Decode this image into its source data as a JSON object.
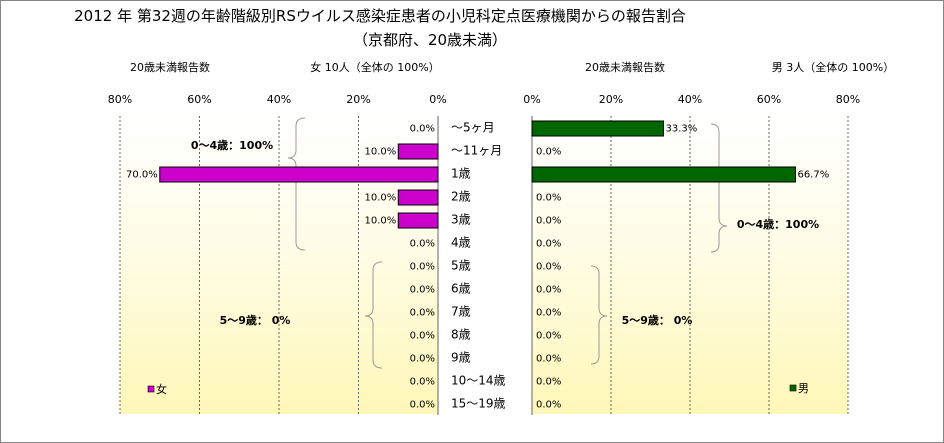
{
  "title_line1": "2012 年 第32週の年齢階級別RSウイルス感染症患者の小児科定点医療機関からの報告割合",
  "title_line2": "（京都府、20歳未満）",
  "left_header": {
    "label": "20歳未満報告数",
    "summary": "女  10人（全体の  100%）"
  },
  "right_header": {
    "label": "20歳未満報告数",
    "summary": "男  3人（全体の  100%）"
  },
  "chart_data": [
    {
      "type": "bar",
      "orientation": "horizontal-reversed",
      "categories": [
        "～5ヶ月",
        "～11ヶ月",
        "1歳",
        "2歳",
        "3歳",
        "4歳",
        "5歳",
        "6歳",
        "7歳",
        "8歳",
        "9歳",
        "10～14歳",
        "15～19歳"
      ],
      "series": [
        {
          "name": "女",
          "values": [
            0.0,
            10.0,
            70.0,
            10.0,
            10.0,
            0.0,
            0.0,
            0.0,
            0.0,
            0.0,
            0.0,
            0.0,
            0.0
          ]
        }
      ],
      "value_labels": [
        "0.0%",
        "10.0%",
        "70.0%",
        "10.0%",
        "10.0%",
        "0.0%",
        "0.0%",
        "0.0%",
        "0.0%",
        "0.0%",
        "0.0%",
        "0.0%",
        "0.0%"
      ],
      "xlim": [
        0,
        80
      ],
      "ticks": [
        "80%",
        "60%",
        "40%",
        "20%",
        "0%"
      ],
      "annotations": [
        "0～4歳：100%",
        "5～9歳：  0%"
      ],
      "legend": "bottom-left",
      "color": "#cc00cc"
    },
    {
      "type": "bar",
      "orientation": "horizontal",
      "categories": [
        "～5ヶ月",
        "～11ヶ月",
        "1歳",
        "2歳",
        "3歳",
        "4歳",
        "5歳",
        "6歳",
        "7歳",
        "8歳",
        "9歳",
        "10～14歳",
        "15～19歳"
      ],
      "series": [
        {
          "name": "男",
          "values": [
            33.3,
            0.0,
            66.7,
            0.0,
            0.0,
            0.0,
            0.0,
            0.0,
            0.0,
            0.0,
            0.0,
            0.0,
            0.0
          ]
        }
      ],
      "value_labels": [
        "33.3%",
        "0.0%",
        "66.7%",
        "0.0%",
        "0.0%",
        "0.0%",
        "0.0%",
        "0.0%",
        "0.0%",
        "0.0%",
        "0.0%",
        "0.0%",
        "0.0%"
      ],
      "xlim": [
        0,
        80
      ],
      "ticks": [
        "0%",
        "20%",
        "40%",
        "60%",
        "80%"
      ],
      "annotations": [
        "0～4歳：100%",
        "5～9歳：  0%"
      ],
      "legend": "bottom-right",
      "color": "#006600"
    }
  ]
}
